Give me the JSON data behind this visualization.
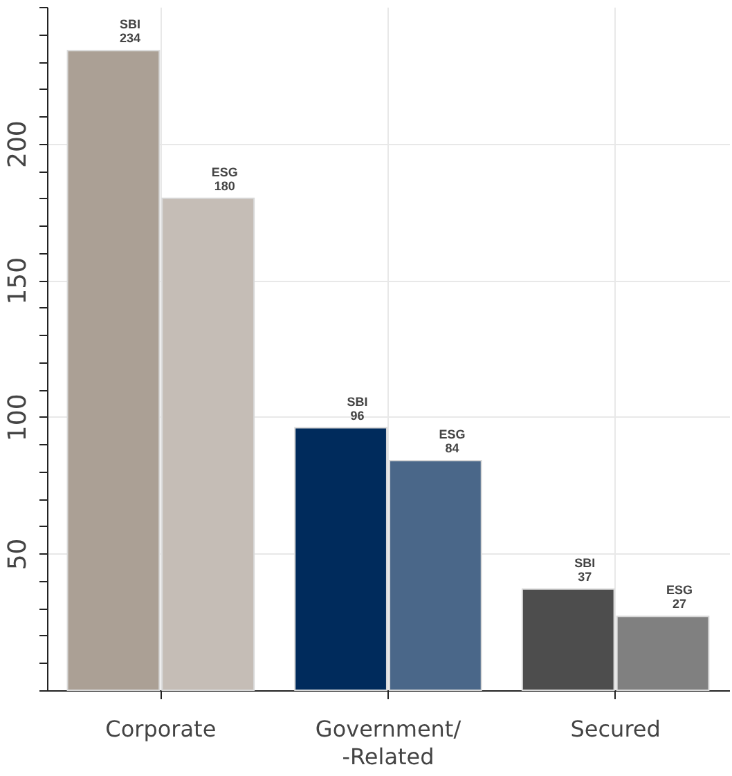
{
  "chart_data": {
    "type": "bar",
    "categories": [
      "Corporate",
      "Government/\n-Related",
      "Secured"
    ],
    "series": [
      {
        "name": "SBI",
        "colors": [
          "#aba095",
          "#002b5c",
          "#4d4d4d"
        ],
        "values": [
          234,
          96,
          37
        ]
      },
      {
        "name": "ESG",
        "colors": [
          "#c5bdb6",
          "#4a6789",
          "#808080"
        ],
        "values": [
          180,
          84,
          27
        ]
      }
    ],
    "ylim": [
      0,
      250
    ],
    "yticks": [
      {
        "value": 0,
        "label": null
      },
      {
        "value": 10,
        "label": null
      },
      {
        "value": 20,
        "label": null
      },
      {
        "value": 30,
        "label": null
      },
      {
        "value": 40,
        "label": null
      },
      50,
      {
        "value": 60,
        "label": null
      },
      {
        "value": 70,
        "label": null
      },
      {
        "value": 80,
        "label": null
      },
      {
        "value": 90,
        "label": null
      },
      100,
      {
        "value": 110,
        "label": null
      },
      {
        "value": 120,
        "label": null
      },
      {
        "value": 130,
        "label": null
      },
      {
        "value": 140,
        "label": null
      },
      150,
      {
        "value": 160,
        "label": null
      },
      {
        "value": 170,
        "label": null
      },
      {
        "value": 180,
        "label": null
      },
      {
        "value": 190,
        "label": null
      },
      200,
      {
        "value": 210,
        "label": null
      },
      {
        "value": 220,
        "label": null
      },
      {
        "value": 230,
        "label": null
      },
      {
        "value": 240,
        "label": null
      },
      {
        "value": 250,
        "label": null
      }
    ],
    "grid": true,
    "data_labels": true
  }
}
